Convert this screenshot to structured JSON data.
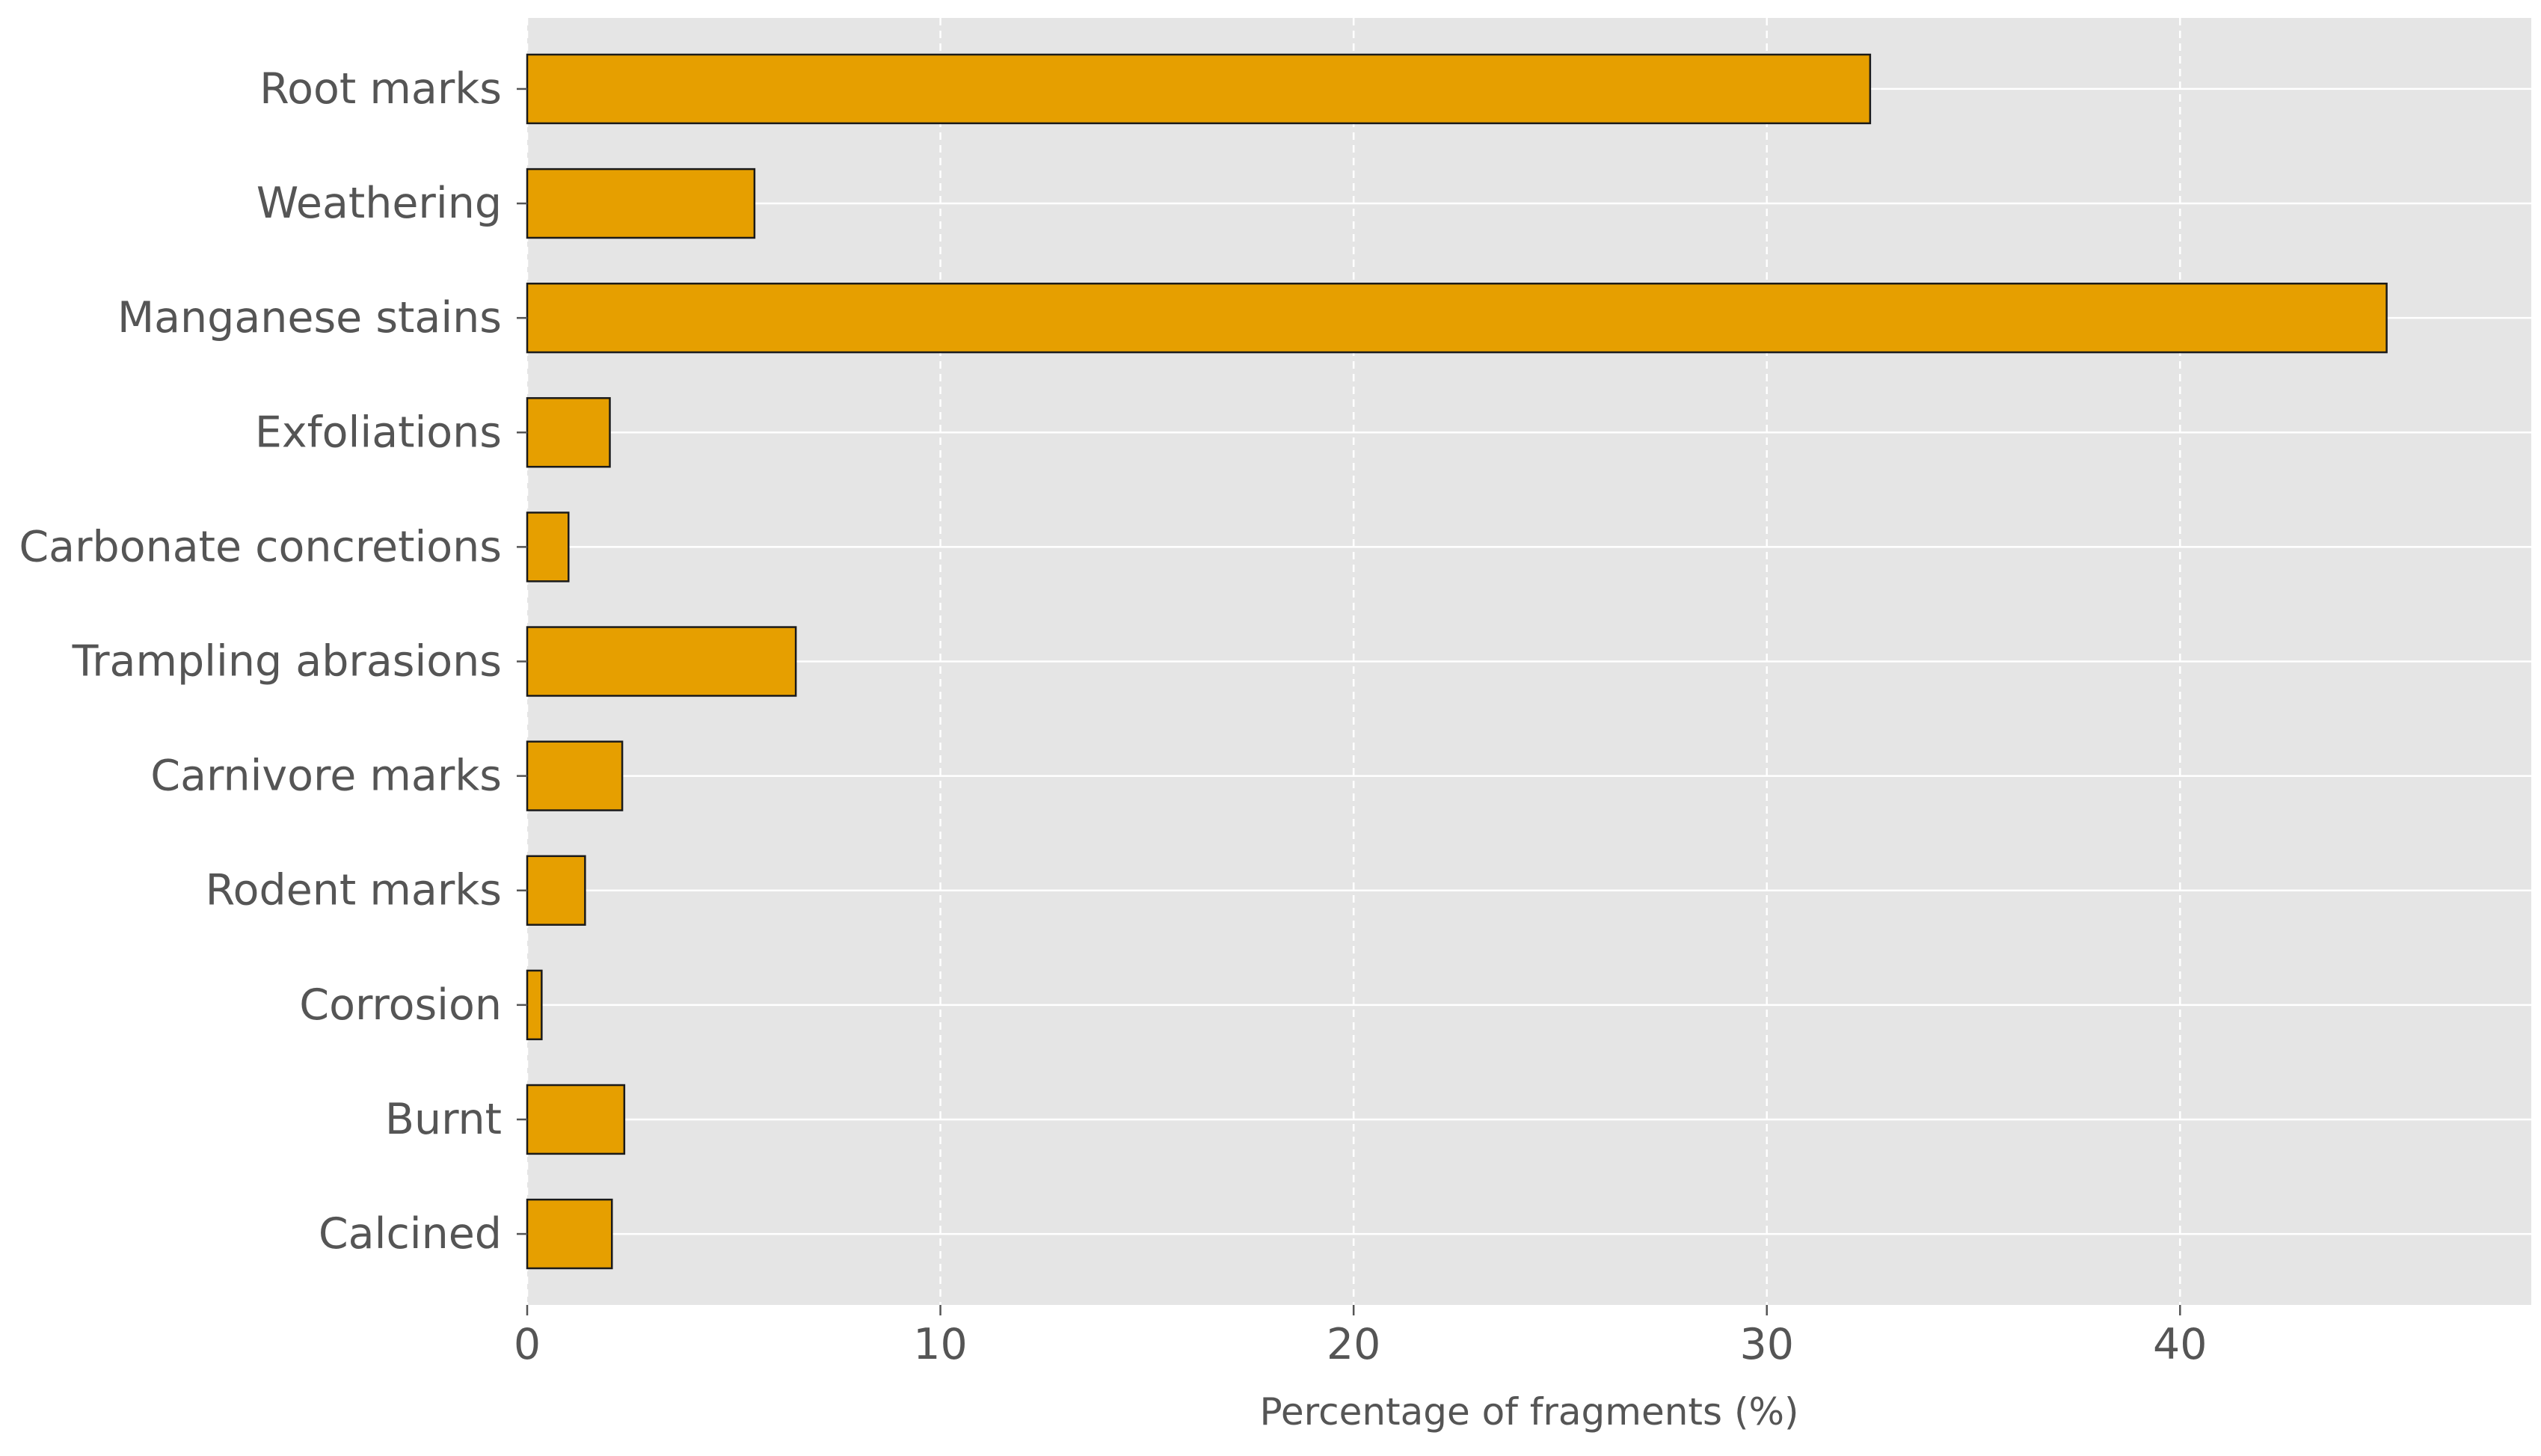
{
  "chart_data": {
    "type": "bar",
    "orientation": "horizontal",
    "categories": [
      "Root marks",
      "Weathering",
      "Manganese stains",
      "Exfoliations",
      "Carbonate concretions",
      "Trampling abrasions",
      "Carnivore marks",
      "Rodent marks",
      "Corrosion",
      "Burnt",
      "Calcined"
    ],
    "values": [
      32.5,
      5.5,
      45.0,
      2.0,
      1.0,
      6.5,
      2.3,
      1.4,
      0.35,
      2.35,
      2.05
    ],
    "xlabel": "Percentage of fragments (%)",
    "ylabel": "",
    "xlim": [
      0,
      48.5
    ],
    "xticks": [
      "0",
      "10",
      "20",
      "30",
      "40"
    ],
    "grid": true,
    "colors": {
      "bar": "#E69F00",
      "bar_edge": "#1a1a1a",
      "plot_bg": "#E5E5E5",
      "grid": "#ffffff",
      "text": "#555555"
    }
  }
}
